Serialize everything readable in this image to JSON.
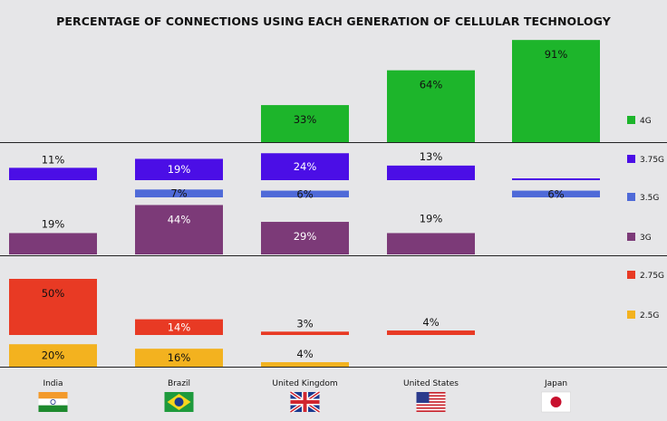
{
  "chart_data": {
    "type": "bar",
    "title": "PERCENTAGE OF CONNECTIONS USING EACH GENERATION OF CELLULAR TECHNOLOGY",
    "categories": [
      "India",
      "Brazil",
      "United Kingdom",
      "United States",
      "Japan"
    ],
    "series": [
      {
        "name": "4G",
        "color": "#1db52b",
        "values": [
          0,
          0,
          33,
          64,
          91
        ],
        "labels": [
          "",
          "",
          "33%",
          "64%",
          "91%"
        ]
      },
      {
        "name": "3.75G",
        "color": "#4b0ee6",
        "values": [
          11,
          19,
          24,
          13,
          1
        ],
        "labels": [
          "11%",
          "19%",
          "24%",
          "13%",
          ""
        ]
      },
      {
        "name": "3.5G",
        "color": "#4f6ad8",
        "values": [
          0,
          7,
          6,
          0,
          6
        ],
        "labels": [
          "",
          "7%",
          "6%",
          "",
          "6%"
        ]
      },
      {
        "name": "3G",
        "color": "#7c3a78",
        "values": [
          19,
          44,
          29,
          19,
          0
        ],
        "labels": [
          "19%",
          "44%",
          "29%",
          "19%",
          ""
        ]
      },
      {
        "name": "2.75G",
        "color": "#e83a24",
        "values": [
          50,
          14,
          3,
          4,
          0
        ],
        "labels": [
          "50%",
          "14%",
          "3%",
          "4%",
          ""
        ]
      },
      {
        "name": "2.5G",
        "color": "#f3b21f",
        "values": [
          20,
          16,
          4,
          0,
          0
        ],
        "labels": [
          "20%",
          "16%",
          "4%",
          "",
          ""
        ]
      }
    ],
    "flags": [
      "india-flag",
      "brazil-flag",
      "uk-flag",
      "usa-flag",
      "japan-flag"
    ],
    "grid": false,
    "legend_position": "right"
  }
}
